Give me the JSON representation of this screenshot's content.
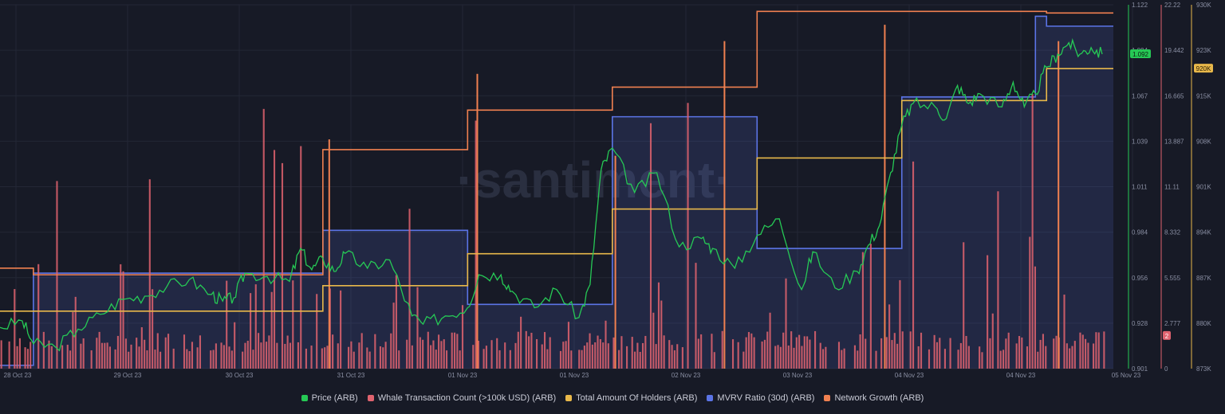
{
  "colors": {
    "background": "#171a26",
    "price": "#26c955",
    "whale": "#e0636f",
    "holders": "#e8b84a",
    "mvrv": "#5b74e6",
    "network": "#f08050",
    "grid": "#232735",
    "axis_text": "#8a8fa3"
  },
  "watermark": "·santiment·",
  "chart_data": {
    "type": "line",
    "x_tick_labels": [
      "28 Oct 23",
      "29 Oct 23",
      "30 Oct 23",
      "31 Oct 23",
      "01 Nov 23",
      "01 Nov 23",
      "02 Nov 23",
      "03 Nov 23",
      "04 Nov 23",
      "04 Nov 23",
      "05 Nov 23"
    ],
    "x_range": [
      0,
      100
    ],
    "grid": true,
    "legend_position": "bottom",
    "axes": {
      "price": {
        "ticks": [
          "1.122",
          "1.094",
          "1.067",
          "1.039",
          "1.011",
          "0.984",
          "0.956",
          "0.928",
          "0.901"
        ],
        "ylim": [
          0.901,
          1.122
        ],
        "current_label": "1.092"
      },
      "whale": {
        "ticks": [
          "22.22",
          "19.442",
          "16.665",
          "13.887",
          "11.11",
          "8.332",
          "5.555",
          "2.777",
          "0"
        ],
        "ylim": [
          0,
          22.22
        ],
        "current_label": "2"
      },
      "holders": {
        "ticks": [
          "930K",
          "923K",
          "915K",
          "908K",
          "901K",
          "894K",
          "887K",
          "880K",
          "873K"
        ],
        "ylim": [
          873000,
          930000
        ],
        "current_label": "920K"
      }
    },
    "series": [
      {
        "name": "Price (ARB)",
        "key": "price",
        "axis": "price",
        "style": "line",
        "x": [
          0,
          2,
          3,
          5,
          7,
          9,
          11,
          13,
          15,
          17,
          19,
          20,
          21,
          22,
          24,
          26,
          27,
          28,
          29,
          30,
          31,
          33,
          35,
          37,
          38,
          40,
          42,
          43,
          45,
          46,
          48,
          50,
          52,
          53,
          54,
          55,
          57,
          59,
          61,
          63,
          64,
          66,
          68,
          70,
          72,
          73,
          75,
          77,
          78,
          79,
          80,
          81,
          82,
          84,
          85,
          86,
          87,
          88,
          90,
          91,
          92,
          93,
          94,
          95,
          96,
          97,
          98,
          99
        ],
        "y": [
          0.926,
          0.93,
          0.916,
          0.914,
          0.925,
          0.934,
          0.943,
          0.945,
          0.951,
          0.955,
          0.946,
          0.942,
          0.944,
          0.959,
          0.957,
          0.954,
          0.974,
          0.961,
          0.968,
          0.96,
          0.971,
          0.962,
          0.967,
          0.933,
          0.928,
          0.933,
          0.938,
          0.958,
          0.958,
          0.948,
          0.938,
          0.949,
          0.932,
          0.952,
          1.022,
          1.035,
          1.008,
          1.02,
          0.975,
          0.98,
          0.974,
          0.962,
          0.982,
          0.992,
          0.949,
          0.972,
          0.95,
          0.96,
          0.976,
          0.988,
          1.02,
          1.049,
          1.062,
          1.06,
          1.053,
          1.073,
          1.062,
          1.068,
          1.06,
          1.075,
          1.06,
          1.068,
          1.084,
          1.092,
          1.099,
          1.092,
          1.096,
          1.092
        ]
      },
      {
        "name": "Whale Transaction Count (>100k USD) (ARB)",
        "key": "whale",
        "axis": "whale",
        "style": "bars",
        "bar_count": 420,
        "current": 2
      },
      {
        "name": "Total Amount Of Holders (ARB)",
        "key": "holders",
        "axis": "holders",
        "style": "step",
        "x": [
          0,
          16,
          29,
          42,
          55,
          68,
          81,
          94,
          100
        ],
        "y": [
          882000,
          882000,
          886000,
          891000,
          898000,
          906000,
          915000,
          920000,
          920000
        ]
      },
      {
        "name": "MVRV Ratio (30d) (ARB)",
        "key": "mvrv",
        "axis": "price",
        "style": "step-area",
        "x": [
          0,
          3,
          16,
          29,
          42,
          55,
          68,
          81,
          93,
          94,
          100
        ],
        "y": [
          0.903,
          0.959,
          0.959,
          0.985,
          0.94,
          1.054,
          0.974,
          1.066,
          1.115,
          1.109,
          1.109
        ]
      },
      {
        "name": "Network Growth (ARB)",
        "key": "network",
        "axis": "price",
        "style": "step",
        "x": [
          0,
          3,
          16,
          29,
          42,
          55,
          68,
          81,
          94,
          100
        ],
        "y": [
          0.962,
          0.958,
          0.958,
          1.034,
          1.058,
          1.072,
          1.118,
          1.118,
          1.117,
          1.117
        ]
      }
    ]
  }
}
